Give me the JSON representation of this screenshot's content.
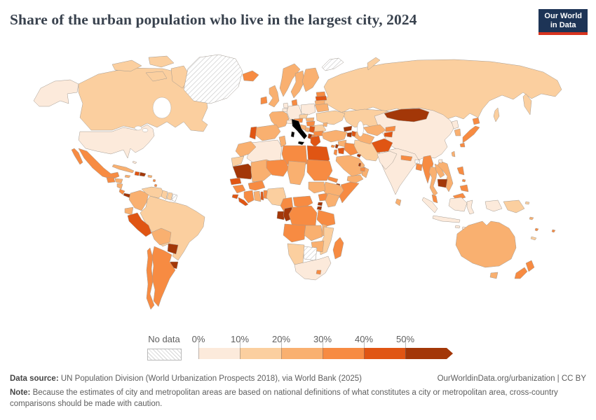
{
  "header": {
    "title": "Share of the urban population who live in the largest city, 2024",
    "logo_line1": "Our World",
    "logo_line2": "in Data"
  },
  "legend": {
    "no_data_label": "No data",
    "tick_labels": [
      "0%",
      "10%",
      "20%",
      "30%",
      "40%",
      "50%"
    ]
  },
  "footer": {
    "data_source_label": "Data source:",
    "data_source": "UN Population Division (World Urbanization Prospects 2018), via World Bank (2025)",
    "attribution": "OurWorldinData.org/urbanization | CC BY",
    "note_label": "Note:",
    "note": "Because the estimates of city and metropolitan areas are based on national definitions of what constitutes a city or metropolitan area, cross-country comparisons should be made with caution."
  },
  "chart_data": {
    "type": "choropleth-map",
    "title": "Share of the urban population who live in the largest city, 2024",
    "year": 2024,
    "unit": "%",
    "legend_position": "bottom",
    "bands": {
      "b1": {
        "range": "0-10%",
        "color": "#fceadb"
      },
      "b2": {
        "range": "10-20%",
        "color": "#fbcf9f"
      },
      "b3": {
        "range": "20-30%",
        "color": "#f9b070"
      },
      "b4": {
        "range": "30-40%",
        "color": "#f78b42"
      },
      "b5": {
        "range": "40-50%",
        "color": "#e05513"
      },
      "b6": {
        "range": "50%+",
        "color": "#a33708"
      },
      "nd": {
        "range": "No data",
        "color": "hatch"
      }
    },
    "regions": {
      "alaska": "b1",
      "canada": "b2",
      "usa": "b1",
      "greenland": "nd",
      "mexico": "b4",
      "guatemala": "b4",
      "honduras": "b3",
      "nicaragua": "b3",
      "costa-rica": "b4",
      "panama": "b6",
      "cuba": "b3",
      "jamaica": "b3",
      "haiti": "b5",
      "dominican-republic": "b6",
      "puerto-rico": "b3",
      "bahamas": "b1",
      "lesser-antilles": "b4",
      "colombia": "b3",
      "venezuela": "b2",
      "guyana": "b2",
      "suriname": "b2",
      "french-guiana": "nd",
      "ecuador": "b3",
      "peru": "b5",
      "brazil": "b2",
      "bolivia": "b3",
      "paraguay": "b6",
      "uruguay": "b6",
      "argentina": "b4",
      "chile": "b4",
      "iceland": "b4",
      "ireland": "b4",
      "uk": "b3",
      "portugal": "b5",
      "spain": "b3",
      "france": "b3",
      "belgium": "b1",
      "netherlands": "b1",
      "germany": "b1",
      "denmark": "b4",
      "norway": "b3",
      "sweden": "b3",
      "finland": "b3",
      "estonia": "b4",
      "latvia": "b5",
      "lithuania": "b3",
      "poland": "b1",
      "czechia": "b2",
      "slovakia": "b3",
      "austria": "b4",
      "switzerland": "b1",
      "hungary": "b4",
      "croatia": "b3",
      "bosnia": "b3",
      "serbia": "b5",
      "albania": "b6",
      "macedonia": "b4",
      "greece": "b5",
      "bulgaria": "b4",
      "romania": "b2",
      "moldova": "b3",
      "ukraine": "b2",
      "belarus": "b3",
      "russia": "b2",
      "svalbard": "nd",
      "morocco": "b3",
      "western-sahara": "b2",
      "algeria": "b1",
      "tunisia": "b3",
      "libya": "b4",
      "egypt": "b5",
      "mauritania": "b6",
      "senegal": "b5",
      "guinea": "b4",
      "sierra-leone": "b5",
      "liberia": "b5",
      "ivory-coast": "b4",
      "ghana": "b3",
      "togo": "b5",
      "benin": "b4",
      "burkina-faso": "b4",
      "mali": "b3",
      "niger": "b4",
      "nigeria": "b2",
      "chad": "b3",
      "cameroon": "b4",
      "central-african-republic": "b4",
      "sudan": "b4",
      "eritrea": "b4",
      "djibouti": "b6",
      "ethiopia": "b3",
      "somalia": "b4",
      "south-sudan": "b3",
      "uganda": "b4",
      "kenya": "b3",
      "rwanda": "b6",
      "burundi": "b6",
      "gabon": "b6",
      "congo": "b6",
      "drc": "b4",
      "tanzania": "b4",
      "angola": "b4",
      "zambia": "b3",
      "malawi": "b3",
      "mozambique": "b2",
      "zimbabwe": "b3",
      "botswana": "nd",
      "namibia": "b2",
      "south-africa": "b1",
      "lesotho": "b4",
      "madagascar": "b4",
      "turkey": "b3",
      "cyprus": "b4",
      "syria": "b3",
      "lebanon": "b6",
      "israel": "b4",
      "jordan": "b5",
      "iraq": "b4",
      "kuwait": "b6",
      "qatar": "b6",
      "saudi-arabia": "b3",
      "yemen": "b3",
      "oman": "b3",
      "uae": "b4",
      "georgia": "b6",
      "armenia": "b6",
      "azerbaijan": "b5",
      "iran": "b2",
      "kazakhstan": "b2",
      "uzbekistan": "b3",
      "turkmenistan": "b3",
      "kyrgyzstan": "b4",
      "tajikistan": "b5",
      "afghanistan": "b5",
      "pakistan": "b1",
      "india": "b1",
      "nepal": "b4",
      "bhutan": "nd",
      "bangladesh": "b4",
      "sri-lanka": "b3",
      "myanmar": "b4",
      "thailand": "b3",
      "laos": "b3",
      "cambodia": "b6",
      "vietnam": "b3",
      "malaysia": "b4",
      "indonesia": "b1",
      "philippines": "b4",
      "papua-new-guinea": "b2",
      "solomon-islands": "b3",
      "vanuatu": "b4",
      "new-caledonia": "b2",
      "fiji": "b4",
      "china": "b1",
      "mongolia": "b6",
      "north-korea": "b1",
      "south-korea": "b3",
      "japan": "b4",
      "taiwan": "b3",
      "australia": "b3",
      "new-zealand": "b4"
    }
  }
}
